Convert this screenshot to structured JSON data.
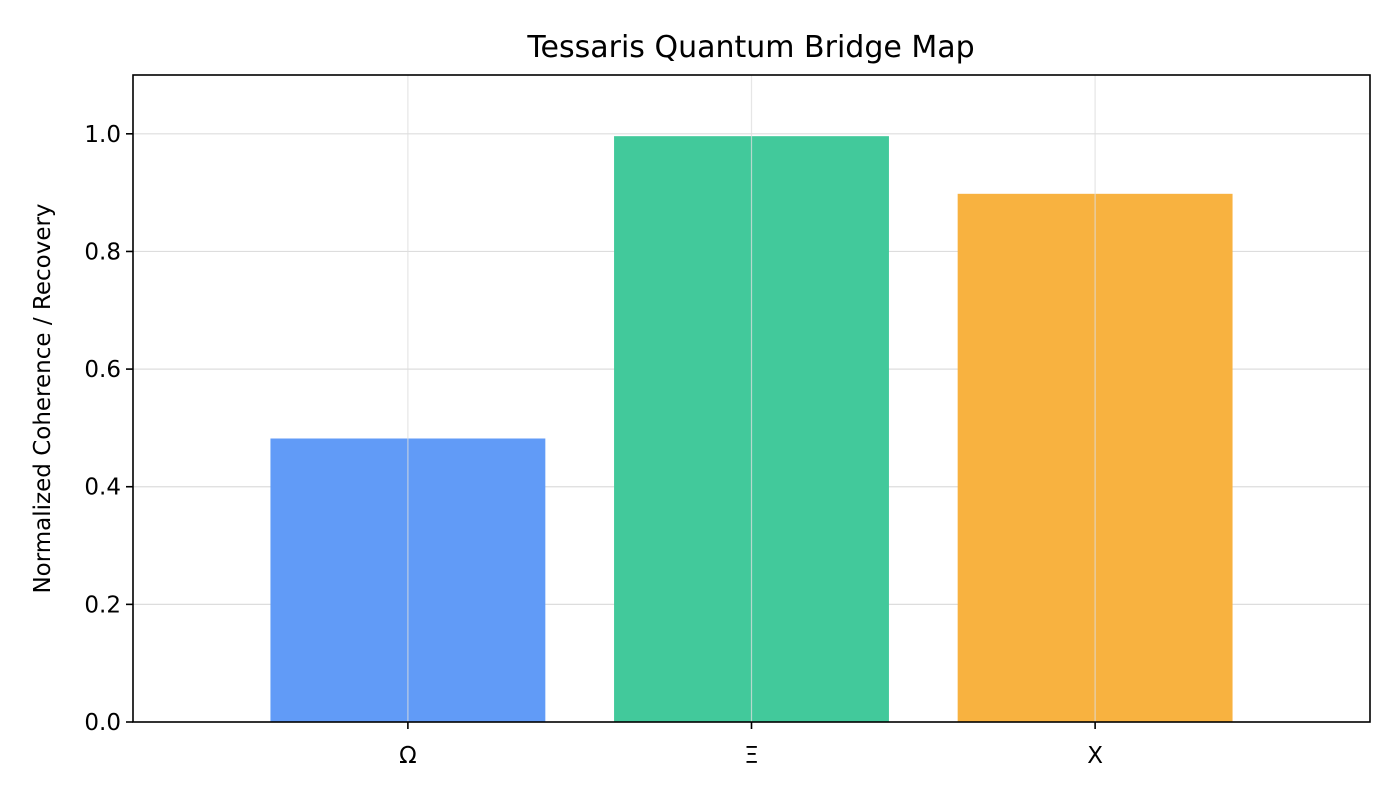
{
  "chart_data": {
    "type": "bar",
    "title": "Tessaris Quantum Bridge Map",
    "xlabel": "",
    "ylabel": "Normalized Coherence / Recovery",
    "categories": [
      "Ω",
      "Ξ",
      "X"
    ],
    "values": [
      0.482,
      0.996,
      0.898
    ],
    "colors": [
      "#619bf7",
      "#42c99b",
      "#f8b240"
    ],
    "ylim": [
      0,
      1.1
    ],
    "yticks": [
      0.0,
      0.2,
      0.4,
      0.6,
      0.8,
      1.0
    ],
    "ytick_labels": [
      "0.0",
      "0.2",
      "0.4",
      "0.6",
      "0.8",
      "1.0"
    ],
    "grid": true,
    "legend": "none"
  }
}
